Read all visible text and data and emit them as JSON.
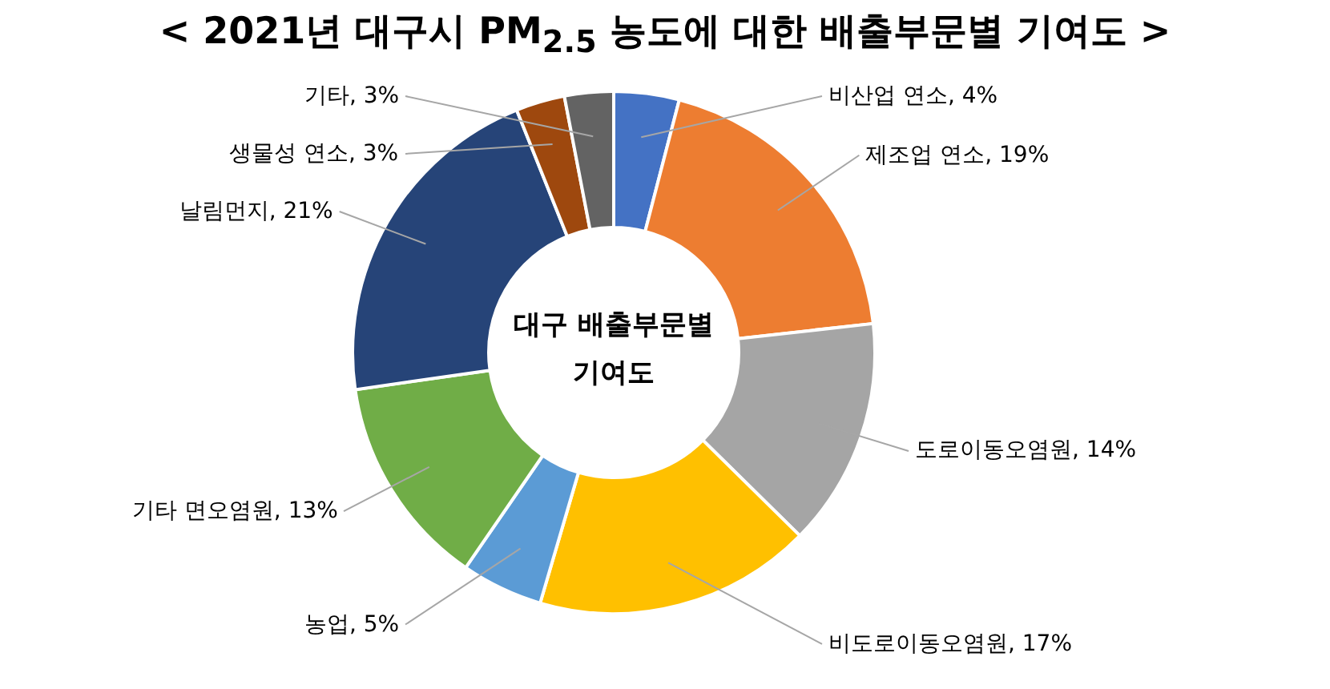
{
  "chart_data": {
    "type": "donut",
    "title": "< 2021년 대구시 PM$_{2.5}$ 농도에 대한 배출부문별 기여도 >",
    "categories": [
      "비산업 연소",
      "제조업 연소",
      "도로이동오염원",
      "비도로이동오염원",
      "농업",
      "기타 면오염원",
      "날림먼지",
      "생물성 연소",
      "기타"
    ],
    "values": [
      4,
      19,
      14,
      17,
      5,
      13,
      21,
      3,
      3
    ],
    "value_labels": [
      "4%",
      "19%",
      "14%",
      "17%",
      "5%",
      "13%",
      "21%",
      "3%",
      "3%"
    ],
    "colors": [
      "#4472c4",
      "#ed7d31",
      "#a5a5a5",
      "#ffc000",
      "#5b9bd5",
      "#70ad47",
      "#264478",
      "#9e480e",
      "#636363"
    ],
    "annotations": [
      "대구 배출부문별 기여도"
    ]
  }
}
